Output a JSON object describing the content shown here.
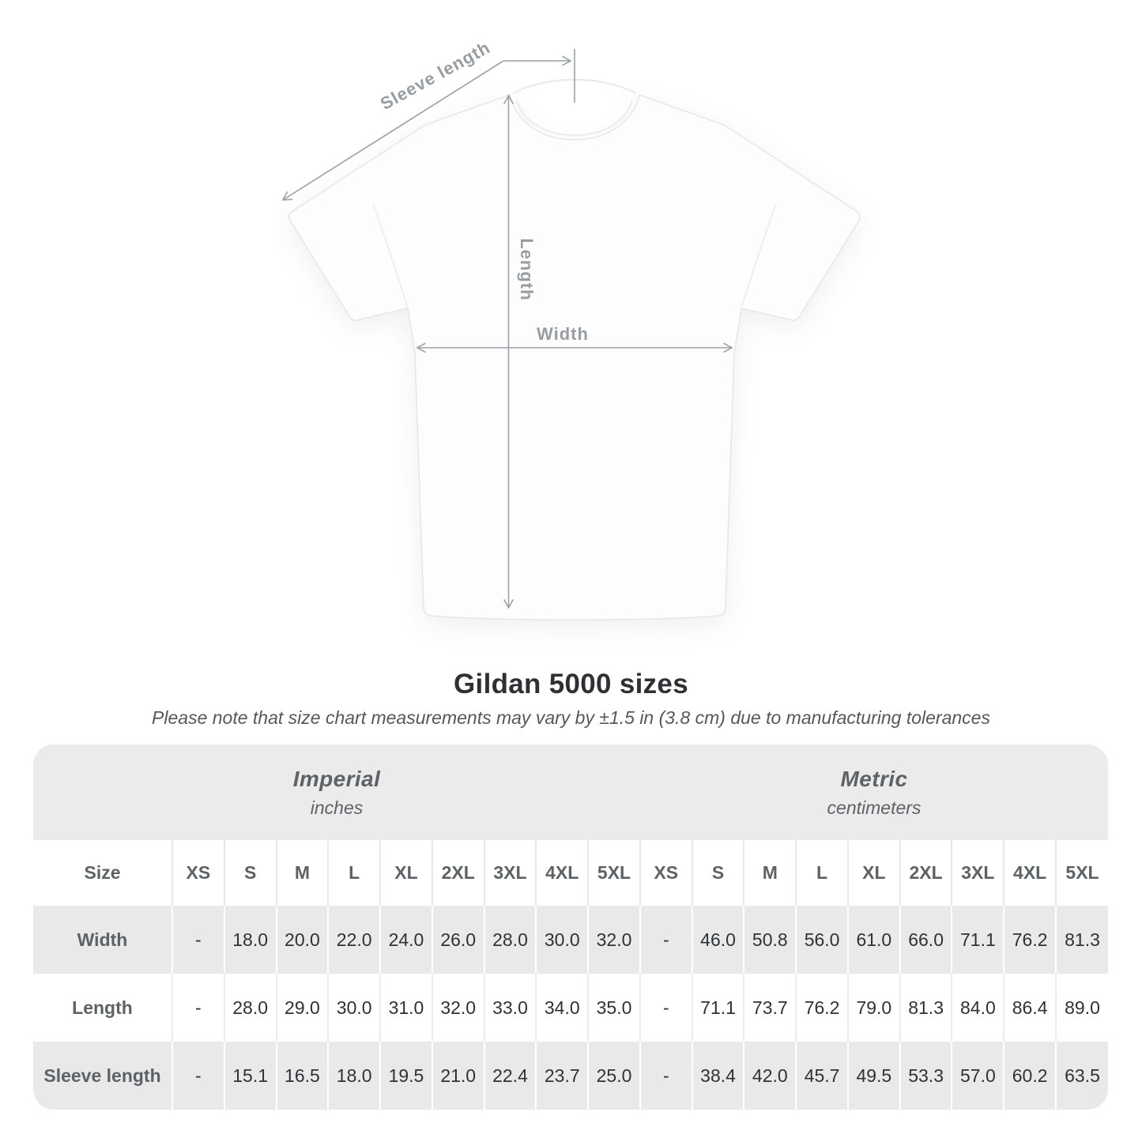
{
  "diagram": {
    "sleeve_length_label": "Sleeve length",
    "length_label": "Length",
    "width_label": "Width"
  },
  "title": "Gildan 5000 sizes",
  "subtitle": "Please note that size chart measurements may vary by ±1.5 in (3.8 cm) due to manufacturing tolerances",
  "table": {
    "size_header": "Size",
    "groups": [
      {
        "title": "Imperial",
        "unit": "inches"
      },
      {
        "title": "Metric",
        "unit": "centimeters"
      }
    ],
    "columns": [
      "XS",
      "S",
      "M",
      "L",
      "XL",
      "2XL",
      "3XL",
      "4XL",
      "5XL",
      "XS",
      "S",
      "M",
      "L",
      "XL",
      "2XL",
      "3XL",
      "4XL",
      "5XL"
    ],
    "rows": [
      {
        "label": "Width",
        "values": [
          "-",
          "18.0",
          "20.0",
          "22.0",
          "24.0",
          "26.0",
          "28.0",
          "30.0",
          "32.0",
          "-",
          "46.0",
          "50.8",
          "56.0",
          "61.0",
          "66.0",
          "71.1",
          "76.2",
          "81.3"
        ]
      },
      {
        "label": "Length",
        "values": [
          "-",
          "28.0",
          "29.0",
          "30.0",
          "31.0",
          "32.0",
          "33.0",
          "34.0",
          "35.0",
          "-",
          "71.1",
          "73.7",
          "76.2",
          "79.0",
          "81.3",
          "84.0",
          "86.4",
          "89.0"
        ]
      },
      {
        "label": "Sleeve length",
        "values": [
          "-",
          "15.1",
          "16.5",
          "18.0",
          "19.5",
          "21.0",
          "22.4",
          "23.7",
          "25.0",
          "-",
          "38.4",
          "42.0",
          "45.7",
          "49.5",
          "53.3",
          "57.0",
          "60.2",
          "63.5"
        ]
      }
    ]
  },
  "chart_data": {
    "type": "table",
    "title": "Gildan 5000 sizes",
    "note": "Please note that size chart measurements may vary by ±1.5 in (3.8 cm) due to manufacturing tolerances",
    "sizes": [
      "XS",
      "S",
      "M",
      "L",
      "XL",
      "2XL",
      "3XL",
      "4XL",
      "5XL"
    ],
    "unit_groups": [
      "Imperial (inches)",
      "Metric (centimeters)"
    ],
    "measurements": [
      {
        "name": "Width",
        "imperial_in": [
          null,
          18.0,
          20.0,
          22.0,
          24.0,
          26.0,
          28.0,
          30.0,
          32.0
        ],
        "metric_cm": [
          null,
          46.0,
          50.8,
          56.0,
          61.0,
          66.0,
          71.1,
          76.2,
          81.3
        ]
      },
      {
        "name": "Length",
        "imperial_in": [
          null,
          28.0,
          29.0,
          30.0,
          31.0,
          32.0,
          33.0,
          34.0,
          35.0
        ],
        "metric_cm": [
          null,
          71.1,
          73.7,
          76.2,
          79.0,
          81.3,
          84.0,
          86.4,
          89.0
        ]
      },
      {
        "name": "Sleeve length",
        "imperial_in": [
          null,
          15.1,
          16.5,
          18.0,
          19.5,
          21.0,
          22.4,
          23.7,
          25.0
        ],
        "metric_cm": [
          null,
          38.4,
          42.0,
          45.7,
          49.5,
          53.3,
          57.0,
          60.2,
          63.5
        ]
      }
    ]
  },
  "colors": {
    "table_band_bg": "#ebebeb",
    "table_alt_row_bg": "#e9e9e9",
    "header_text": "#5d6266",
    "value_text": "#2f3234",
    "diagram_line": "#9aa1a7",
    "diagram_label": "#979da2",
    "title_text": "#2e3133"
  }
}
